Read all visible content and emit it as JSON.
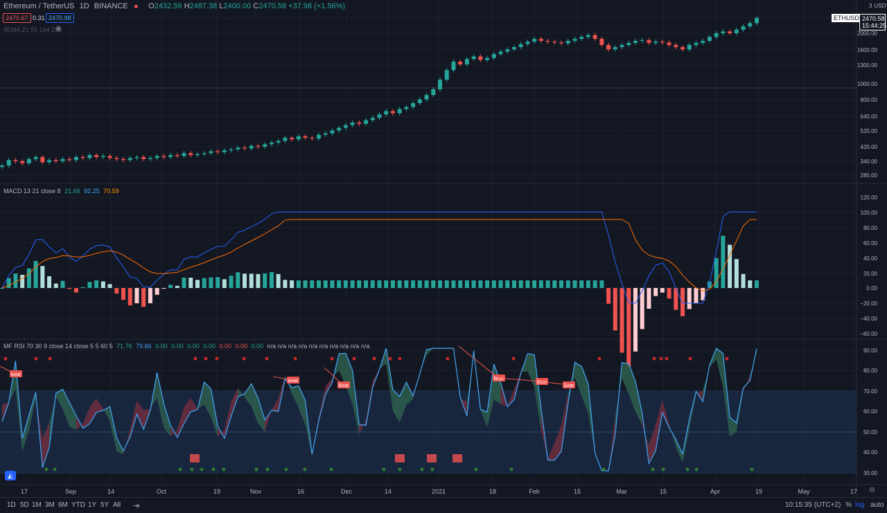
{
  "symbol": {
    "title": "Ethereum / TetherUS",
    "interval": "1D",
    "exchange": "BINANCE",
    "ohlc": {
      "o": "2432.59",
      "h": "2487.38",
      "l": "2400.00",
      "c": "2470.58",
      "chg": "+37.98 (+1.56%)"
    },
    "bid": "2470.67",
    "spread": "0.31",
    "ask": "2470.98",
    "ema_label": "4EMA 21 55 144 233"
  },
  "price_axis": {
    "unit": "USDT",
    "ticks": [
      "2000.00",
      "1600.00",
      "1300.00",
      "1000.00",
      "800.00",
      "640.00",
      "520.00",
      "420.00",
      "340.00",
      "280.00"
    ],
    "tag_symbol": "ETHUSDT",
    "tag_price": "2470.58",
    "tag_time": "15:44:25"
  },
  "macd": {
    "label": "MACD 13 21 close 8",
    "v1": "21.66",
    "v2": "92.25",
    "v3": "70.59",
    "ticks": [
      "120.00",
      "100.00",
      "80.00",
      "60.00",
      "40.00",
      "20.00",
      "0.00",
      "−20.00",
      "−40.00",
      "−60.00"
    ]
  },
  "rsi": {
    "label": "MF RSI 70 30 9 close 14 close 5 5 60 5",
    "v1": "71.76",
    "v2": "79.66",
    "zeros": [
      "0.00",
      "0.00",
      "0.00",
      "0.00",
      "0.00",
      "0.00",
      "0.00"
    ],
    "nas": [
      "n/a",
      "n/a",
      "n/a",
      "n/a",
      "n/a",
      "n/a",
      "n/a",
      "n/a",
      "n/a",
      "n/a"
    ],
    "ticks": [
      "90.00",
      "80.00",
      "70.00",
      "60.00",
      "50.00",
      "40.00",
      "30.00"
    ],
    "bear_label": "Bear"
  },
  "time_axis": [
    "17",
    "Sep",
    "14",
    "Oct",
    "19",
    "Nov",
    "16",
    "Dec",
    "14",
    "2021",
    "18",
    "Feb",
    "15",
    "Mar",
    "15",
    "Apr",
    "19",
    "May",
    "17"
  ],
  "toolbar": {
    "ranges": [
      "1D",
      "5D",
      "1M",
      "3M",
      "6M",
      "YTD",
      "1Y",
      "5Y",
      "All"
    ],
    "clock": "10:15:35 (UTC+2)",
    "pct": "%",
    "log": "log",
    "auto": "auto"
  },
  "colors": {
    "up": "#26a69a",
    "down": "#ef5350",
    "macd": "#2962ff",
    "signal": "#ff6d00",
    "rsi": "#42a5f5",
    "band": "#1e3a5f"
  },
  "chart_data": {
    "type": "candlestick",
    "close_path": [
      320,
      345,
      340,
      330,
      350,
      360,
      335,
      345,
      340,
      350,
      345,
      360,
      355,
      370,
      360,
      365,
      355,
      350,
      345,
      355,
      360,
      350,
      355,
      365,
      360,
      370,
      365,
      380,
      370,
      375,
      380,
      390,
      385,
      395,
      400,
      410,
      405,
      420,
      415,
      430,
      440,
      450,
      470,
      460,
      480,
      470,
      465,
      490,
      500,
      520,
      540,
      560,
      580,
      570,
      600,
      620,
      650,
      680,
      660,
      700,
      720,
      760,
      800,
      850,
      920,
      1050,
      1200,
      1350,
      1300,
      1400,
      1450,
      1380,
      1420,
      1500,
      1550,
      1600,
      1650,
      1720,
      1780,
      1850,
      1800,
      1780,
      1760,
      1740,
      1800,
      1850,
      1900,
      1950,
      1850,
      1700,
      1600,
      1650,
      1700,
      1750,
      1800,
      1820,
      1750,
      1780,
      1760,
      1700,
      1650,
      1600,
      1700,
      1750,
      1800,
      1900,
      2000,
      2050,
      2000,
      2100,
      2200,
      2300,
      2470
    ],
    "macd_hist_range": [
      -45,
      42
    ],
    "rsi_range": [
      30,
      92
    ]
  }
}
